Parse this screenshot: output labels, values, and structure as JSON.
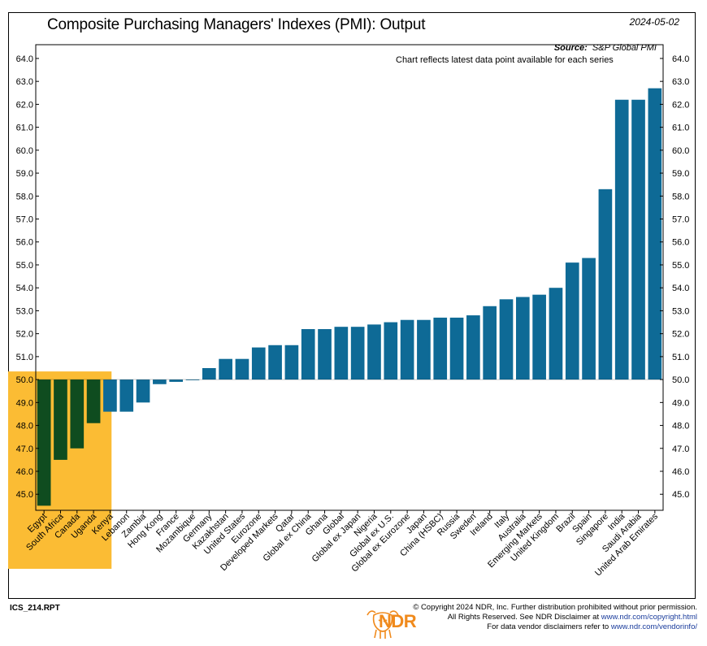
{
  "header": {
    "title": "Composite Purchasing Managers' Indexes (PMI): Output",
    "date": "2024-05-02",
    "source_label": "Source:",
    "source_value": "S&P Global PMI",
    "note": "Chart reflects latest data point available for each series"
  },
  "footer": {
    "report_id": "ICS_214.RPT",
    "logo_text": "NDR",
    "copyright_line1": "© Copyright 2024 NDR, Inc. Further distribution prohibited without prior permission.",
    "copyright_line2_prefix": "All Rights Reserved. See NDR Disclaimer at ",
    "copyright_line2_link": "www.ndr.com/copyright.html",
    "copyright_line3_prefix": "For data vendor disclaimers refer to ",
    "copyright_line3_link": "www.ndr.com/vendorinfo/"
  },
  "colors": {
    "bar_default": "#0e6a96",
    "bar_highlight": "#0f4c1f",
    "highlight_box": "#fbbc34"
  },
  "chart_data": {
    "type": "bar",
    "baseline": 50.0,
    "ylim": [
      44.3,
      64.6
    ],
    "yticks": [
      "45.0",
      "46.0",
      "47.0",
      "48.0",
      "49.0",
      "50.0",
      "51.0",
      "52.0",
      "53.0",
      "54.0",
      "55.0",
      "56.0",
      "57.0",
      "58.0",
      "59.0",
      "60.0",
      "61.0",
      "62.0",
      "63.0",
      "64.0"
    ],
    "categories": [
      "Egypt",
      "South Africa",
      "Canada",
      "Uganda",
      "Kenya",
      "Lebanon",
      "Zambia",
      "Hong Kong",
      "France",
      "Mozambique",
      "Germany",
      "Kazakhstan",
      "United States",
      "Eurozone",
      "Developed Markets",
      "Qatar",
      "Global ex China",
      "Ghana",
      "Global",
      "Global ex Japan",
      "Nigeria",
      "Global ex U.S.",
      "Global ex Eurozone",
      "Japan",
      "China (HSBC)",
      "Russia",
      "Sweden",
      "Ireland",
      "Italy",
      "Australia",
      "Emerging Markets",
      "United Kingdom",
      "Brazil",
      "Spain",
      "Singapore",
      "India",
      "Saudi Arabia",
      "United Arab Emirates"
    ],
    "values": [
      44.5,
      46.5,
      47.0,
      48.1,
      48.6,
      48.6,
      49.0,
      49.8,
      49.9,
      50.0,
      50.5,
      50.9,
      50.9,
      51.4,
      51.5,
      51.5,
      52.2,
      52.2,
      52.3,
      52.3,
      52.4,
      52.5,
      52.6,
      52.6,
      52.7,
      52.7,
      52.8,
      53.2,
      53.5,
      53.6,
      53.7,
      54.0,
      55.1,
      55.3,
      58.3,
      62.2,
      62.2,
      62.7
    ],
    "highlight_categories": [
      "Egypt",
      "South Africa",
      "Canada",
      "Uganda"
    ],
    "grid": false
  }
}
